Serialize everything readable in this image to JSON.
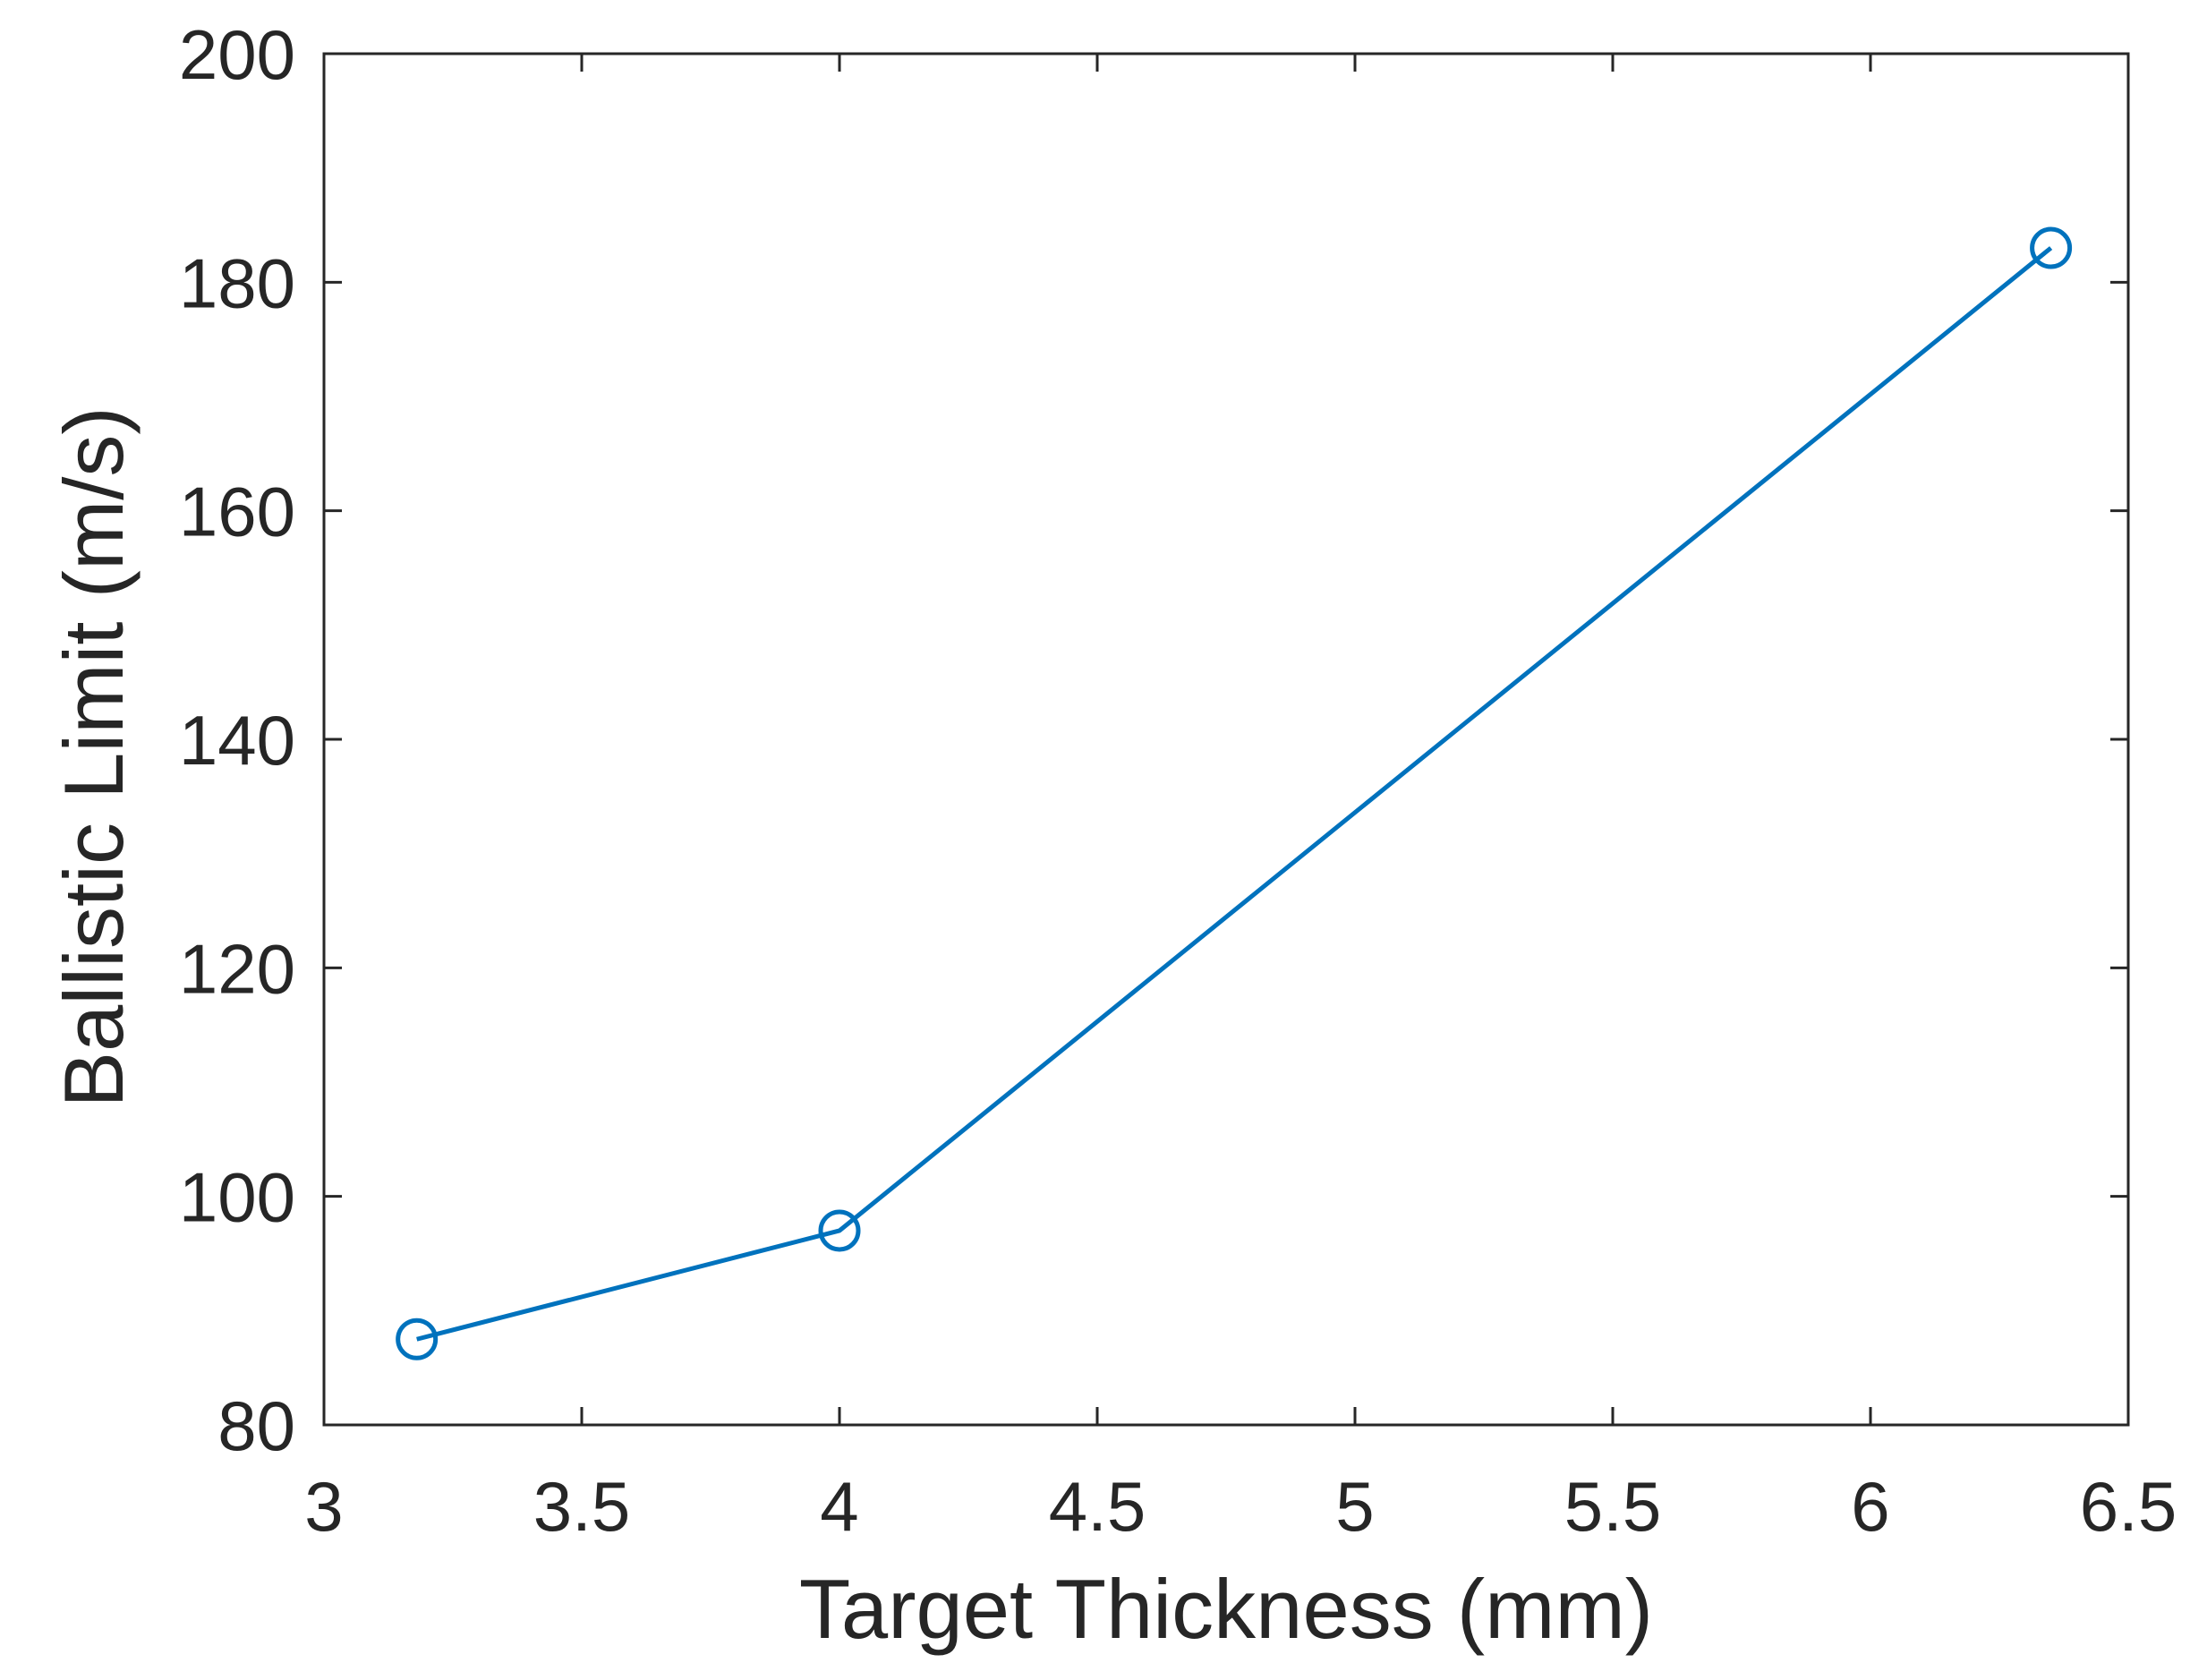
{
  "chart_data": {
    "type": "line",
    "title": "",
    "xlabel": "Target Thickness (mm)",
    "ylabel": "Ballistic Limit (m/s)",
    "xlim": [
      3,
      6.5
    ],
    "ylim": [
      80,
      200
    ],
    "xticks": [
      3,
      3.5,
      4,
      4.5,
      5,
      5.5,
      6,
      6.5
    ],
    "yticks": [
      80,
      100,
      120,
      140,
      160,
      180,
      200
    ],
    "xtick_labels": [
      "3",
      "3.5",
      "4",
      "4.5",
      "5",
      "5.5",
      "6",
      "6.5"
    ],
    "ytick_labels": [
      "80",
      "100",
      "120",
      "140",
      "160",
      "180",
      "200"
    ],
    "grid": false,
    "legend": false,
    "series": [
      {
        "color": "#0072BD",
        "marker": "circle",
        "x": [
          3.18,
          4.0,
          6.35
        ],
        "y": [
          87.5,
          97,
          183
        ]
      }
    ]
  }
}
